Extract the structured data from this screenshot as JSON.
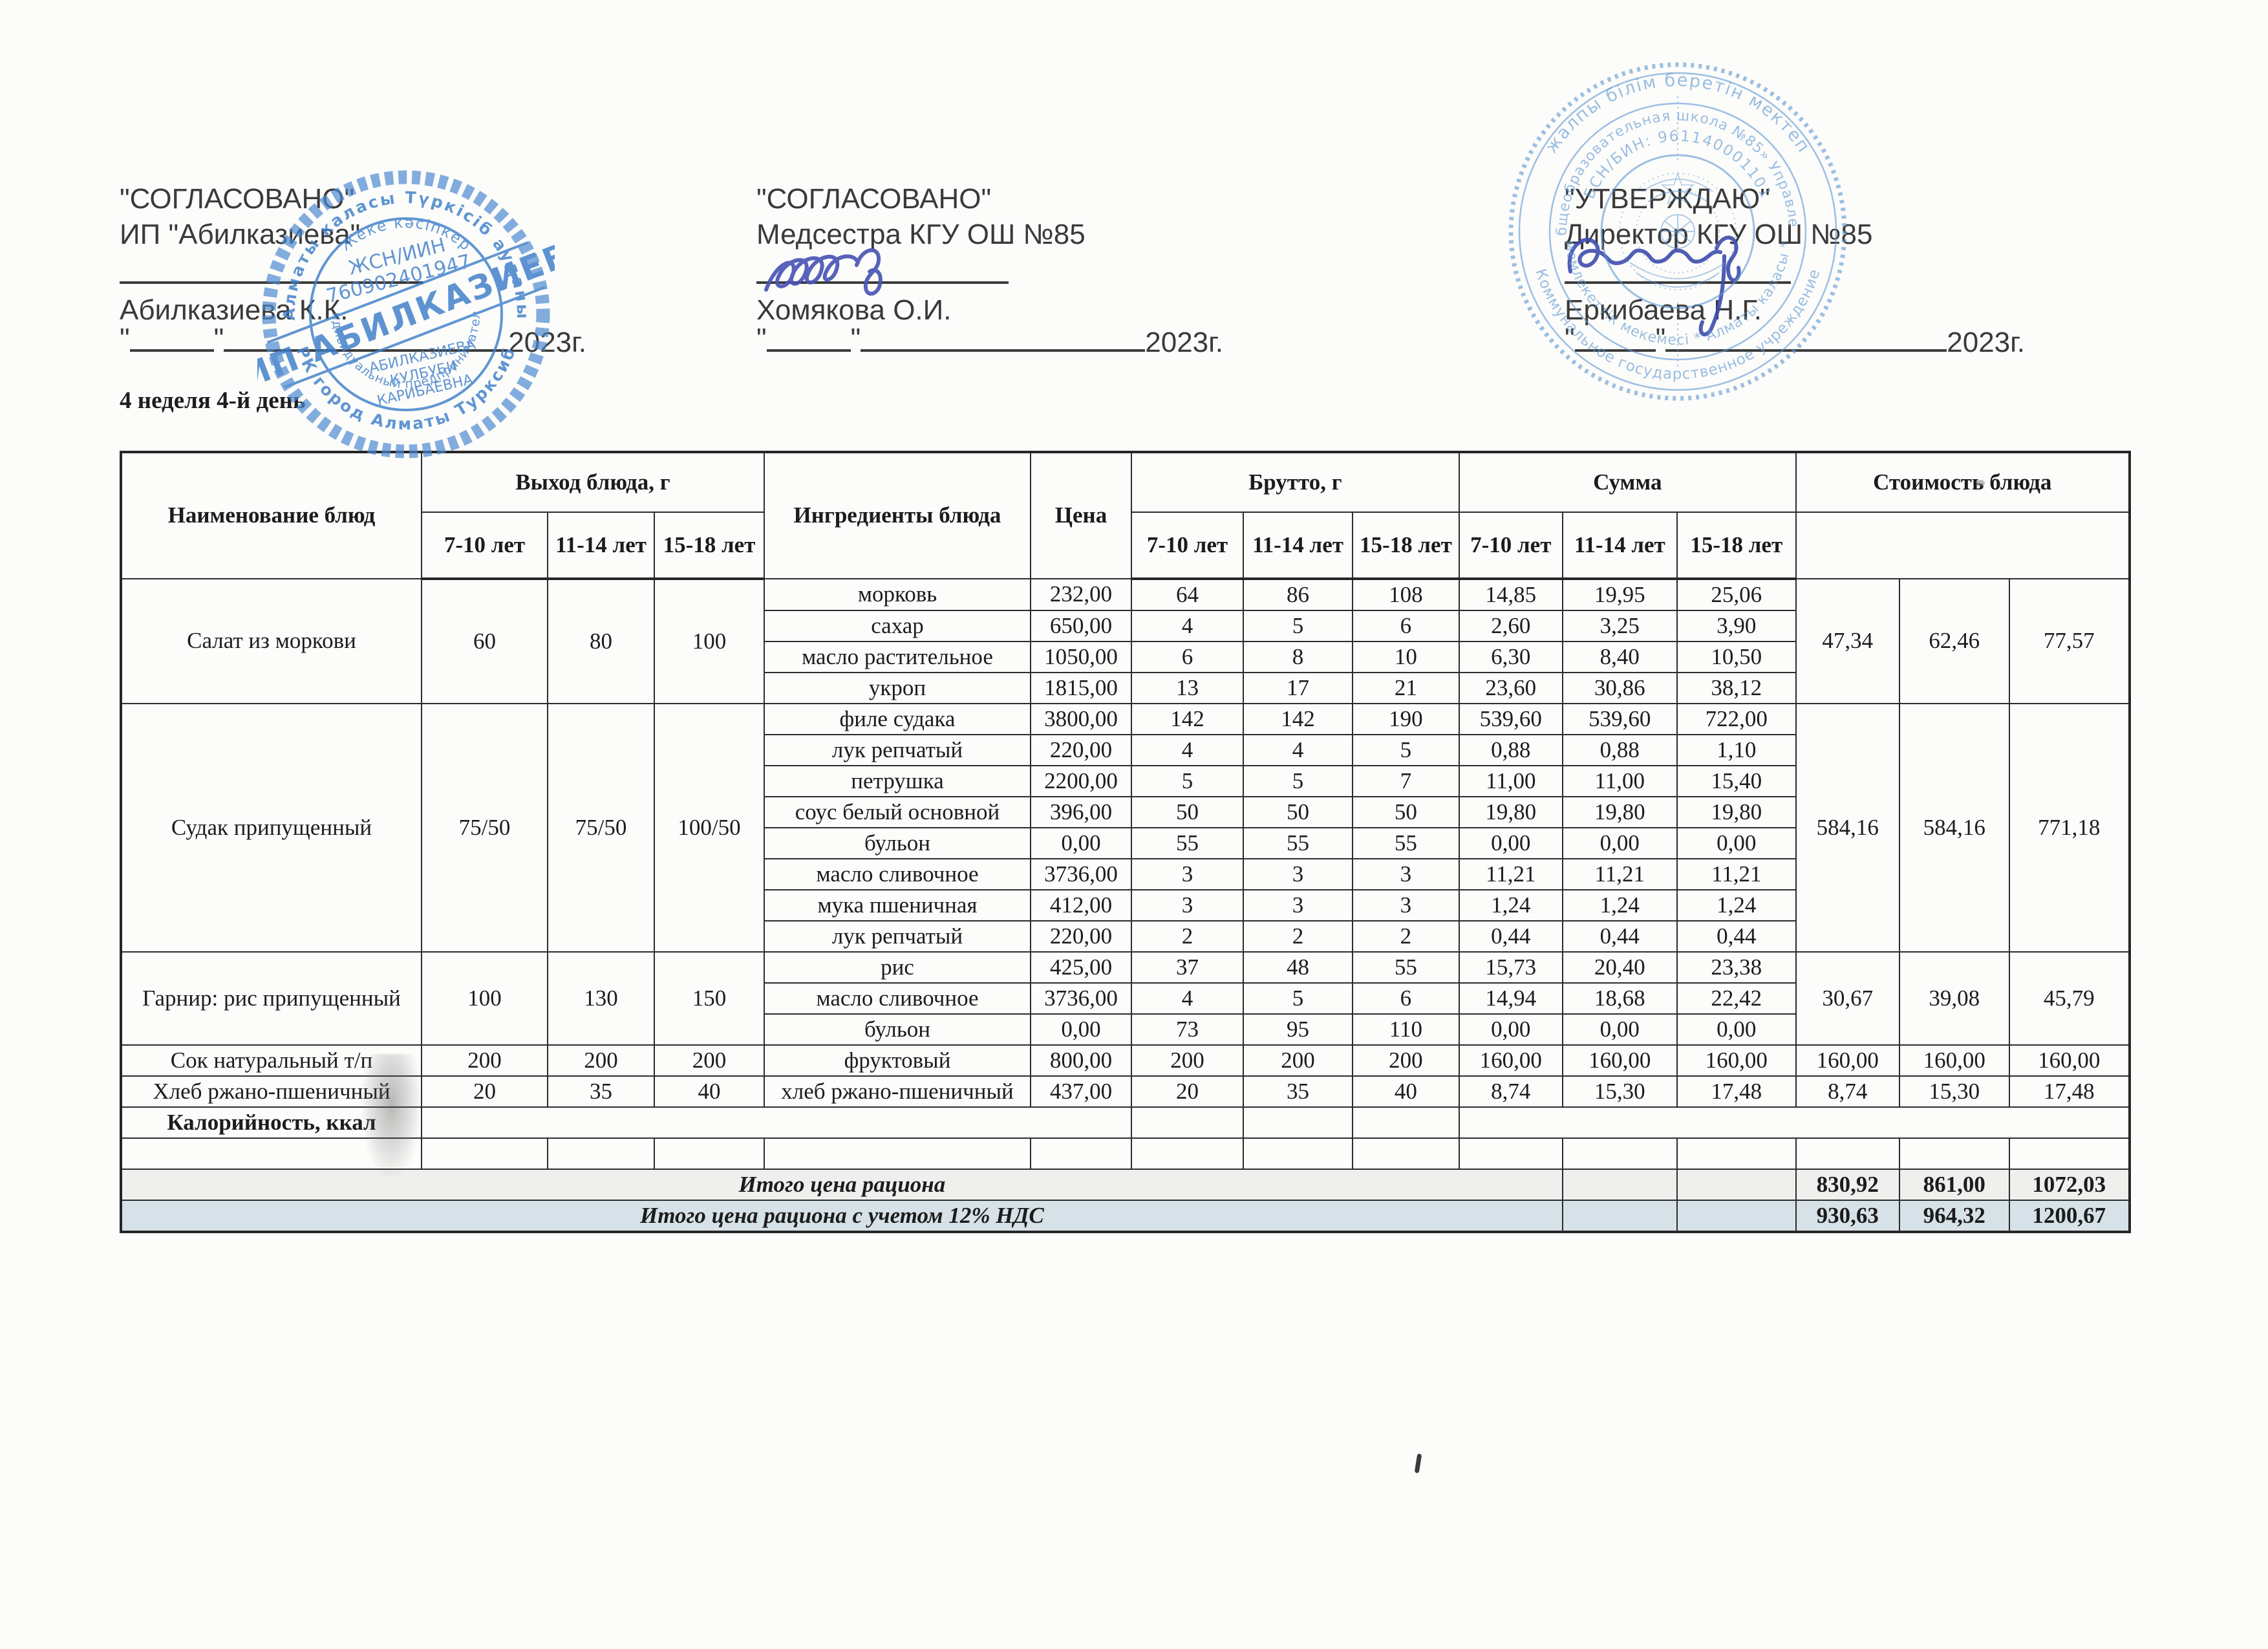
{
  "page": {
    "quote_mark": "\"",
    "year_suffix": "2023г.",
    "week_label": "4 неделя 4-й день"
  },
  "approvals": [
    {
      "title": "\"СОГЛАСОВАНО\"",
      "subtitle": "ИП \"Абилказиева\"",
      "name": "Абилказиева К.К."
    },
    {
      "title": "\"СОГЛАСОВАНО\"",
      "subtitle": "Медсестра КГУ ОШ №85",
      "name": "Хомякова О.И."
    },
    {
      "title": "\"УТВЕРЖДАЮ\"",
      "subtitle": "Директор КГУ ОШ №85",
      "name": "Еркибаева Н.Г."
    }
  ],
  "stamps": {
    "left": {
      "ring_top": "Алматы каласы Түркісіб ауданы",
      "ring_bottom": "РК город Алматы Турксиб",
      "inner_top": "Жеке кәсіпкер",
      "inner_bottom": "Индивидуальный предприниматель",
      "iin_label": "ЖСН/ИИН",
      "iin_value": "760902401947",
      "banner": "ИП АБИЛКАЗИЕВ",
      "owner_line1": "АБИЛКАЗИЕВА",
      "owner_line2": "КУЛБУБИ",
      "owner_line3": "КАРИБАЕВНА"
    },
    "right": {
      "ring1_top": "жалпы білім беретін мектеп",
      "ring1_bottom": "Коммунальное государственное учреждение",
      "ring2_top": "«Общеобразовательная школа №85» Управления",
      "ring2_bottom": "мемлекеттік мекемесі * Алматы каласы *",
      "ring3_top": "БСН/БИН: 961140001101"
    }
  },
  "table": {
    "headers": {
      "col_name": "Наименование блюд",
      "col_output": "Выход блюда, г",
      "col_ingredients": "Ингредиенты блюда",
      "col_price": "Цена",
      "col_brutto": "Брутто, г",
      "col_sum": "Сумма",
      "col_cost": "Стоимость блюда"
    },
    "ages": [
      "7-10 лет",
      "11-14 лет",
      "15-18 лет"
    ],
    "groups": [
      {
        "dish": "Салат из моркови",
        "output": [
          "60",
          "80",
          "100"
        ],
        "cost": [
          "47,34",
          "62,46",
          "77,57"
        ],
        "ingredients": [
          {
            "name": "морковь",
            "price": "232,00",
            "brutto": [
              "64",
              "86",
              "108"
            ],
            "sum": [
              "14,85",
              "19,95",
              "25,06"
            ]
          },
          {
            "name": "сахар",
            "price": "650,00",
            "brutto": [
              "4",
              "5",
              "6"
            ],
            "sum": [
              "2,60",
              "3,25",
              "3,90"
            ]
          },
          {
            "name": "масло растительное",
            "price": "1050,00",
            "brutto": [
              "6",
              "8",
              "10"
            ],
            "sum": [
              "6,30",
              "8,40",
              "10,50"
            ]
          },
          {
            "name": "укроп",
            "price": "1815,00",
            "brutto": [
              "13",
              "17",
              "21"
            ],
            "sum": [
              "23,60",
              "30,86",
              "38,12"
            ]
          }
        ]
      },
      {
        "dish": "Судак припущенный",
        "output": [
          "75/50",
          "75/50",
          "100/50"
        ],
        "cost": [
          "584,16",
          "584,16",
          "771,18"
        ],
        "ingredients": [
          {
            "name": "филе судака",
            "price": "3800,00",
            "brutto": [
              "142",
              "142",
              "190"
            ],
            "sum": [
              "539,60",
              "539,60",
              "722,00"
            ]
          },
          {
            "name": "лук репчатый",
            "price": "220,00",
            "brutto": [
              "4",
              "4",
              "5"
            ],
            "sum": [
              "0,88",
              "0,88",
              "1,10"
            ]
          },
          {
            "name": "петрушка",
            "price": "2200,00",
            "brutto": [
              "5",
              "5",
              "7"
            ],
            "sum": [
              "11,00",
              "11,00",
              "15,40"
            ]
          },
          {
            "name": "соус белый основной",
            "price": "396,00",
            "brutto": [
              "50",
              "50",
              "50"
            ],
            "sum": [
              "19,80",
              "19,80",
              "19,80"
            ]
          },
          {
            "name": "бульон",
            "price": "0,00",
            "brutto": [
              "55",
              "55",
              "55"
            ],
            "sum": [
              "0,00",
              "0,00",
              "0,00"
            ]
          },
          {
            "name": "масло сливочное",
            "price": "3736,00",
            "brutto": [
              "3",
              "3",
              "3"
            ],
            "sum": [
              "11,21",
              "11,21",
              "11,21"
            ]
          },
          {
            "name": "мука пшеничная",
            "price": "412,00",
            "brutto": [
              "3",
              "3",
              "3"
            ],
            "sum": [
              "1,24",
              "1,24",
              "1,24"
            ]
          },
          {
            "name": "лук репчатый",
            "price": "220,00",
            "brutto": [
              "2",
              "2",
              "2"
            ],
            "sum": [
              "0,44",
              "0,44",
              "0,44"
            ]
          }
        ]
      },
      {
        "dish": "Гарнир: рис припущенный",
        "output": [
          "100",
          "130",
          "150"
        ],
        "cost": [
          "30,67",
          "39,08",
          "45,79"
        ],
        "ingredients": [
          {
            "name": "рис",
            "price": "425,00",
            "brutto": [
              "37",
              "48",
              "55"
            ],
            "sum": [
              "15,73",
              "20,40",
              "23,38"
            ]
          },
          {
            "name": "масло сливочное",
            "price": "3736,00",
            "brutto": [
              "4",
              "5",
              "6"
            ],
            "sum": [
              "14,94",
              "18,68",
              "22,42"
            ]
          },
          {
            "name": "бульон",
            "price": "0,00",
            "brutto": [
              "73",
              "95",
              "110"
            ],
            "sum": [
              "0,00",
              "0,00",
              "0,00"
            ]
          }
        ]
      },
      {
        "dish": "Сок натуральный т/п",
        "output": [
          "200",
          "200",
          "200"
        ],
        "cost": [
          "160,00",
          "160,00",
          "160,00"
        ],
        "ingredients": [
          {
            "name": "фруктовый",
            "price": "800,00",
            "brutto": [
              "200",
              "200",
              "200"
            ],
            "sum": [
              "160,00",
              "160,00",
              "160,00"
            ]
          }
        ]
      },
      {
        "dish": "Хлеб ржано-пшеничный",
        "output": [
          "20",
          "35",
          "40"
        ],
        "cost": [
          "8,74",
          "15,30",
          "17,48"
        ],
        "ingredients": [
          {
            "name": "хлеб ржано-пшеничный",
            "price": "437,00",
            "brutto": [
              "20",
              "35",
              "40"
            ],
            "sum": [
              "8,74",
              "15,30",
              "17,48"
            ]
          }
        ]
      }
    ],
    "calories_label": "Калорийность, ккал",
    "totals": [
      {
        "label": "Итого цена рациона",
        "values": [
          "830,92",
          "861,00",
          "1072,03"
        ]
      },
      {
        "label": "Итого цена рациона с учетом 12% НДС",
        "values": [
          "930,63",
          "964,32",
          "1200,67"
        ]
      }
    ]
  }
}
